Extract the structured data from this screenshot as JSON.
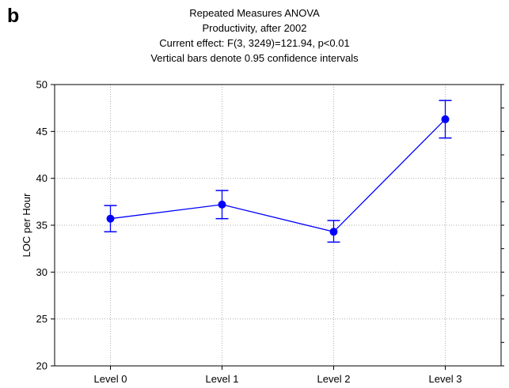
{
  "panel_label": "b",
  "chart_data": {
    "type": "line",
    "title": "Repeated Measures ANOVA",
    "subtitle_lines": [
      "Productivity, after 2002",
      "Current effect: F(3, 3249)=121.94, p<0.01",
      "Vertical bars denote 0.95 confidence intervals"
    ],
    "xlabel": "",
    "ylabel": "LOC per Hour",
    "categories": [
      "Level 0",
      "Level 1",
      "Level 2",
      "Level 3"
    ],
    "ylim": [
      20,
      50
    ],
    "yticks": [
      20,
      25,
      30,
      35,
      40,
      45,
      50
    ],
    "grid": true,
    "series": [
      {
        "values": [
          35.7,
          37.2,
          34.3,
          46.3
        ],
        "ci_lower": [
          34.3,
          35.7,
          33.2,
          44.3
        ],
        "ci_upper": [
          37.1,
          38.7,
          35.5,
          48.3
        ],
        "color": "#0000ff"
      }
    ]
  }
}
